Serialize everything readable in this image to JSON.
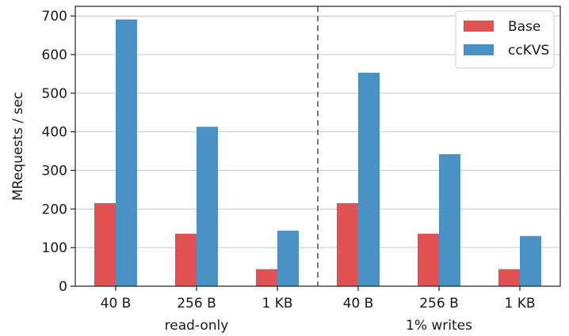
{
  "chart_data": {
    "type": "bar",
    "ylabel": "MRequests / sec",
    "ylim": [
      0,
      725
    ],
    "yticks": [
      0,
      100,
      200,
      300,
      400,
      500,
      600,
      700
    ],
    "grid": true,
    "legend_position": "top-right",
    "categories": [
      "40 B",
      "256 B",
      "1 KB",
      "40 B",
      "256 B",
      "1 KB"
    ],
    "groups": [
      {
        "label": "read-only",
        "categories": [
          0,
          1,
          2
        ]
      },
      {
        "label": "1% writes",
        "categories": [
          3,
          4,
          5
        ]
      }
    ],
    "series": [
      {
        "name": "Base",
        "color": "#e05253",
        "values": [
          215,
          136,
          44,
          215,
          136,
          44
        ]
      },
      {
        "name": "ccKVS",
        "color": "#4a91c6",
        "values": [
          691,
          413,
          144,
          553,
          342,
          130
        ]
      }
    ]
  }
}
